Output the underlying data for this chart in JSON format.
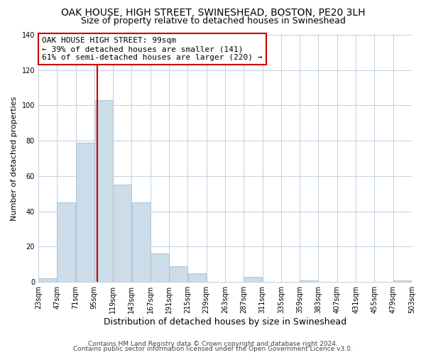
{
  "title": "OAK HOUSE, HIGH STREET, SWINESHEAD, BOSTON, PE20 3LH",
  "subtitle": "Size of property relative to detached houses in Swineshead",
  "xlabel": "Distribution of detached houses by size in Swineshead",
  "ylabel": "Number of detached properties",
  "bin_edges": [
    23,
    47,
    71,
    95,
    119,
    143,
    167,
    191,
    215,
    239,
    263,
    287,
    311,
    335,
    359,
    383,
    407,
    431,
    455,
    479,
    503
  ],
  "bar_heights": [
    2,
    45,
    79,
    103,
    55,
    45,
    16,
    9,
    5,
    0,
    0,
    3,
    0,
    0,
    1,
    0,
    0,
    0,
    0,
    1
  ],
  "bar_color": "#ccdce8",
  "bar_edgecolor": "#a8c0d0",
  "vline_x": 99,
  "vline_color": "#cc0000",
  "annotation_text": "OAK HOUSE HIGH STREET: 99sqm\n← 39% of detached houses are smaller (141)\n61% of semi-detached houses are larger (220) →",
  "annotation_box_edgecolor": "#cc0000",
  "annotation_fontsize": 8,
  "ylim": [
    0,
    140
  ],
  "yticks": [
    0,
    20,
    40,
    60,
    80,
    100,
    120,
    140
  ],
  "footer_line1": "Contains HM Land Registry data © Crown copyright and database right 2024.",
  "footer_line2": "Contains public sector information licensed under the Open Government Licence v3.0.",
  "background_color": "#ffffff",
  "grid_color": "#c0cfe0",
  "title_fontsize": 10,
  "subtitle_fontsize": 9,
  "xlabel_fontsize": 9,
  "ylabel_fontsize": 8,
  "footer_fontsize": 6.5,
  "tick_fontsize": 7
}
